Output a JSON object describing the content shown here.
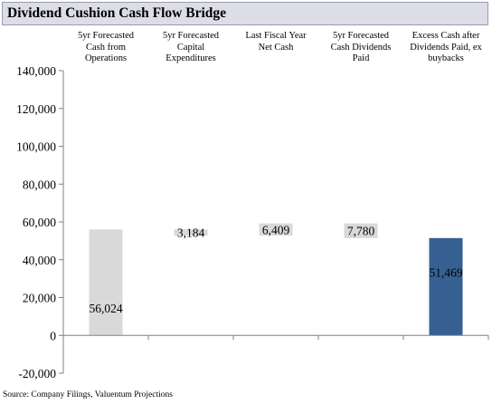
{
  "chart_data": {
    "type": "bar",
    "title": "Dividend Cushion Cash Flow Bridge",
    "categories": [
      [
        "5yr Forecasted",
        "Cash from",
        "Operations"
      ],
      [
        "5yr Forecasted",
        "Capital",
        "Expenditures"
      ],
      [
        "Last Fiscal Year",
        "Net Cash"
      ],
      [
        "5yr Forecasted",
        "Cash Dividends",
        "Paid"
      ],
      [
        "Excess Cash after",
        "Dividends Paid, ex",
        "buybacks"
      ]
    ],
    "bars": [
      {
        "start": 0,
        "end": 56024,
        "label": "56,024",
        "color": "#d9d9d9"
      },
      {
        "start": 56024,
        "end": 52840,
        "label": "3,184",
        "color": "#d9d9d9"
      },
      {
        "start": 52840,
        "end": 59249,
        "label": "6,409",
        "color": "#d9d9d9"
      },
      {
        "start": 59249,
        "end": 51469,
        "label": "7,780",
        "color": "#d9d9d9"
      },
      {
        "start": 0,
        "end": 51469,
        "label": "51,469",
        "color": "#376092"
      }
    ],
    "ylim": [
      -20000,
      140000
    ],
    "yticks": [
      "140,000",
      "120,000",
      "100,000",
      "80,000",
      "60,000",
      "40,000",
      "20,000",
      "0",
      "-20,000"
    ],
    "ytick_values": [
      140000,
      120000,
      100000,
      80000,
      60000,
      40000,
      20000,
      0,
      -20000
    ],
    "grid": false,
    "legend": "none",
    "source": "Source: Company Filings, Valuentum Projections"
  }
}
